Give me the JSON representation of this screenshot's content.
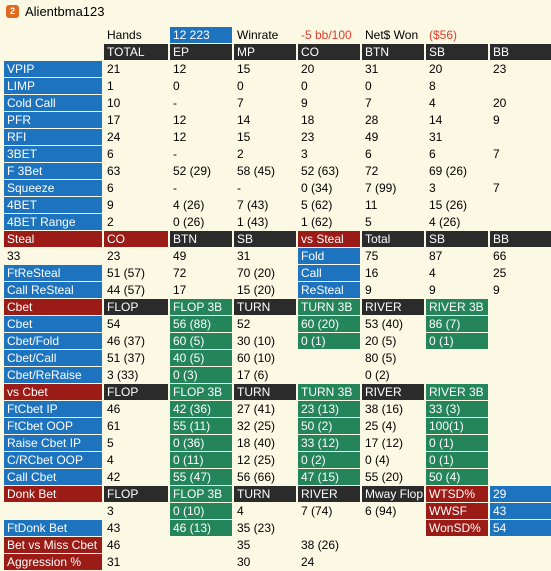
{
  "window": {
    "title": "Alientbma123",
    "icon": "player-badge-icon"
  },
  "summary": {
    "hands_label": "Hands",
    "hands_value": "12 223",
    "winrate_label": "Winrate",
    "winrate_value": "-5 bb/100",
    "net_label": "Net$ Won",
    "net_value": "($56)"
  },
  "rows": [
    [
      {
        "t": "TOTAL",
        "s": "hdr"
      },
      {
        "t": "EP",
        "s": "hdr"
      },
      {
        "t": "MP",
        "s": "hdr"
      },
      {
        "t": "CO",
        "s": "hdr"
      },
      {
        "t": "BTN",
        "s": "hdr"
      },
      {
        "t": "SB",
        "s": "hdr"
      },
      {
        "t": "BB",
        "s": "hdr"
      }
    ],
    [
      {
        "t": "VPIP",
        "s": "lbl"
      },
      {
        "t": "21"
      },
      {
        "t": "12"
      },
      {
        "t": "15"
      },
      {
        "t": "20"
      },
      {
        "t": "31"
      },
      {
        "t": "20"
      },
      {
        "t": "23"
      }
    ],
    [
      {
        "t": "LIMP",
        "s": "lbl"
      },
      {
        "t": "1"
      },
      {
        "t": "0"
      },
      {
        "t": "0"
      },
      {
        "t": "0"
      },
      {
        "t": "0"
      },
      {
        "t": "8"
      },
      {
        "t": ""
      }
    ],
    [
      {
        "t": "Cold Call",
        "s": "lbl"
      },
      {
        "t": "10"
      },
      {
        "t": "-"
      },
      {
        "t": "7"
      },
      {
        "t": "9"
      },
      {
        "t": "7"
      },
      {
        "t": "4"
      },
      {
        "t": "20"
      }
    ],
    [
      {
        "t": "PFR",
        "s": "lbl"
      },
      {
        "t": "17"
      },
      {
        "t": "12"
      },
      {
        "t": "14"
      },
      {
        "t": "18"
      },
      {
        "t": "28"
      },
      {
        "t": "14"
      },
      {
        "t": "9"
      }
    ],
    [
      {
        "t": "RFI",
        "s": "lbl"
      },
      {
        "t": "24"
      },
      {
        "t": "12"
      },
      {
        "t": "15"
      },
      {
        "t": "23"
      },
      {
        "t": "49"
      },
      {
        "t": "31"
      },
      {
        "t": ""
      }
    ],
    [
      {
        "t": "3BET",
        "s": "lbl"
      },
      {
        "t": "6"
      },
      {
        "t": "-"
      },
      {
        "t": "2"
      },
      {
        "t": "3"
      },
      {
        "t": "6"
      },
      {
        "t": "6"
      },
      {
        "t": "7"
      }
    ],
    [
      {
        "t": "F 3Bet",
        "s": "lbl"
      },
      {
        "t": "63"
      },
      {
        "t": "52 (29)"
      },
      {
        "t": "58 (45)"
      },
      {
        "t": "52 (63)"
      },
      {
        "t": "72"
      },
      {
        "t": "69 (26)"
      },
      {
        "t": ""
      }
    ],
    [
      {
        "t": "Squeeze",
        "s": "lbl"
      },
      {
        "t": "6"
      },
      {
        "t": "-"
      },
      {
        "t": "-"
      },
      {
        "t": "0 (34)"
      },
      {
        "t": "7 (99)"
      },
      {
        "t": "3"
      },
      {
        "t": "7"
      }
    ],
    [
      {
        "t": "4BET",
        "s": "lbl"
      },
      {
        "t": "9"
      },
      {
        "t": "4 (26)"
      },
      {
        "t": "7 (43)"
      },
      {
        "t": "5 (62)"
      },
      {
        "t": "11"
      },
      {
        "t": "15 (26)"
      },
      {
        "t": ""
      }
    ],
    [
      {
        "t": "4BET Range",
        "s": "lbl"
      },
      {
        "t": "2"
      },
      {
        "t": "0 (26)"
      },
      {
        "t": "1 (43)"
      },
      {
        "t": "1 (62)"
      },
      {
        "t": "5"
      },
      {
        "t": "4 (26)"
      },
      {
        "t": ""
      }
    ],
    [
      {
        "t": "Steal",
        "s": "sec"
      },
      {
        "t": "CO",
        "s": "sec"
      },
      {
        "t": "BTN",
        "s": "hdr"
      },
      {
        "t": "SB",
        "s": "hdr"
      },
      {
        "t": "vs Steal",
        "s": "sec"
      },
      {
        "t": "Total",
        "s": "hdr"
      },
      {
        "t": "SB",
        "s": "hdr"
      },
      {
        "t": "BB",
        "s": "hdr"
      }
    ],
    [
      {
        "t": "33"
      },
      {
        "t": "23"
      },
      {
        "t": "49"
      },
      {
        "t": "31"
      },
      {
        "t": "Fold",
        "s": "cyn"
      },
      {
        "t": "75"
      },
      {
        "t": "87"
      },
      {
        "t": "66"
      }
    ],
    [
      {
        "t": "FtReSteal",
        "s": "lbl"
      },
      {
        "t": "51 (57)"
      },
      {
        "t": "72"
      },
      {
        "t": "70 (20)"
      },
      {
        "t": "Call",
        "s": "cyn"
      },
      {
        "t": "16"
      },
      {
        "t": "4"
      },
      {
        "t": "25"
      }
    ],
    [
      {
        "t": "Call ReSteal",
        "s": "lbl"
      },
      {
        "t": "44 (57)"
      },
      {
        "t": "17"
      },
      {
        "t": "15 (20)"
      },
      {
        "t": "ReSteal",
        "s": "cyn"
      },
      {
        "t": "9"
      },
      {
        "t": "9"
      },
      {
        "t": "9"
      }
    ],
    [
      {
        "t": "Cbet",
        "s": "sec"
      },
      {
        "t": "FLOP",
        "s": "hdr"
      },
      {
        "t": "FLOP 3B",
        "s": "grn"
      },
      {
        "t": "TURN",
        "s": "hdr"
      },
      {
        "t": "TURN 3B",
        "s": "grn"
      },
      {
        "t": "RIVER",
        "s": "hdr"
      },
      {
        "t": "RIVER 3B",
        "s": "grn"
      },
      {
        "t": ""
      }
    ],
    [
      {
        "t": "Cbet",
        "s": "lbl"
      },
      {
        "t": "54"
      },
      {
        "t": "56 (88)",
        "s": "grn"
      },
      {
        "t": "52"
      },
      {
        "t": "60 (20)",
        "s": "grn"
      },
      {
        "t": "53 (40)"
      },
      {
        "t": "86 (7)",
        "s": "grn"
      },
      {
        "t": ""
      }
    ],
    [
      {
        "t": "Cbet/Fold",
        "s": "lbl"
      },
      {
        "t": "46 (37)"
      },
      {
        "t": "60 (5)",
        "s": "grn"
      },
      {
        "t": "30 (10)"
      },
      {
        "t": "0 (1)",
        "s": "grn"
      },
      {
        "t": "20 (5)"
      },
      {
        "t": "0 (1)",
        "s": "grn"
      },
      {
        "t": ""
      }
    ],
    [
      {
        "t": "Cbet/Call",
        "s": "lbl"
      },
      {
        "t": "51 (37)"
      },
      {
        "t": "40 (5)",
        "s": "grn"
      },
      {
        "t": "60 (10)"
      },
      {
        "t": ""
      },
      {
        "t": "80 (5)"
      },
      {
        "t": ""
      },
      {
        "t": ""
      }
    ],
    [
      {
        "t": "Cbet/ReRaise",
        "s": "lbl"
      },
      {
        "t": "3 (33)"
      },
      {
        "t": "0 (3)",
        "s": "grn"
      },
      {
        "t": "17 (6)"
      },
      {
        "t": ""
      },
      {
        "t": "0 (2)"
      },
      {
        "t": ""
      },
      {
        "t": ""
      }
    ],
    [
      {
        "t": "vs Cbet",
        "s": "sec"
      },
      {
        "t": "FLOP",
        "s": "hdr"
      },
      {
        "t": "FLOP 3B",
        "s": "grn"
      },
      {
        "t": "TURN",
        "s": "hdr"
      },
      {
        "t": "TURN 3B",
        "s": "grn"
      },
      {
        "t": "RIVER",
        "s": "hdr"
      },
      {
        "t": "RIVER 3B",
        "s": "grn"
      },
      {
        "t": ""
      }
    ],
    [
      {
        "t": "FtCbet IP",
        "s": "lbl"
      },
      {
        "t": "46"
      },
      {
        "t": "42 (36)",
        "s": "grn"
      },
      {
        "t": "27 (41)"
      },
      {
        "t": "23 (13)",
        "s": "grn"
      },
      {
        "t": "38 (16)"
      },
      {
        "t": "33 (3)",
        "s": "grn"
      },
      {
        "t": ""
      }
    ],
    [
      {
        "t": "FtCbet OOP",
        "s": "lbl"
      },
      {
        "t": "61"
      },
      {
        "t": "55 (11)",
        "s": "grn"
      },
      {
        "t": "32 (25)"
      },
      {
        "t": "50 (2)",
        "s": "grn"
      },
      {
        "t": "25 (4)"
      },
      {
        "t": "100(1)",
        "s": "grn"
      },
      {
        "t": ""
      }
    ],
    [
      {
        "t": "Raise Cbet IP",
        "s": "lbl"
      },
      {
        "t": "5"
      },
      {
        "t": "0 (36)",
        "s": "grn"
      },
      {
        "t": "18 (40)"
      },
      {
        "t": "33 (12)",
        "s": "grn"
      },
      {
        "t": "17 (12)"
      },
      {
        "t": "0 (1)",
        "s": "grn"
      },
      {
        "t": ""
      }
    ],
    [
      {
        "t": "C/RCbet OOP",
        "s": "lbl"
      },
      {
        "t": "4"
      },
      {
        "t": "0 (11)",
        "s": "grn"
      },
      {
        "t": "12 (25)"
      },
      {
        "t": "0 (2)",
        "s": "grn"
      },
      {
        "t": "0 (4)"
      },
      {
        "t": "0 (1)",
        "s": "grn"
      },
      {
        "t": ""
      }
    ],
    [
      {
        "t": "Call Cbet",
        "s": "lbl"
      },
      {
        "t": "42"
      },
      {
        "t": "55 (47)",
        "s": "grn"
      },
      {
        "t": "56 (66)"
      },
      {
        "t": "47 (15)",
        "s": "grn"
      },
      {
        "t": "55 (20)"
      },
      {
        "t": "50 (4)",
        "s": "grn"
      },
      {
        "t": ""
      }
    ],
    [
      {
        "t": "Donk Bet",
        "s": "sec"
      },
      {
        "t": "FLOP",
        "s": "hdr"
      },
      {
        "t": "FLOP 3B",
        "s": "grn"
      },
      {
        "t": "TURN",
        "s": "hdr"
      },
      {
        "t": "RIVER",
        "s": "hdr"
      },
      {
        "t": "Mway Flop",
        "s": "hdr"
      },
      {
        "t": "WTSD%",
        "s": "sec"
      },
      {
        "t": "29",
        "s": "cyn"
      }
    ],
    [
      {
        "t": ""
      },
      {
        "t": "3"
      },
      {
        "t": "0 (10)",
        "s": "grn"
      },
      {
        "t": "4"
      },
      {
        "t": "7 (74)"
      },
      {
        "t": "6 (94)"
      },
      {
        "t": "WWSF",
        "s": "sec"
      },
      {
        "t": "43",
        "s": "cyn"
      }
    ],
    [
      {
        "t": "FtDonk Bet",
        "s": "lbl"
      },
      {
        "t": "43"
      },
      {
        "t": "46 (13)",
        "s": "grn"
      },
      {
        "t": "35 (23)"
      },
      {
        "t": ""
      },
      {
        "t": ""
      },
      {
        "t": "WonSD%",
        "s": "sec"
      },
      {
        "t": "54",
        "s": "cyn"
      }
    ],
    [
      {
        "t": "Bet vs Miss Cbet",
        "s": "sec"
      },
      {
        "t": "46"
      },
      {
        "t": ""
      },
      {
        "t": "35"
      },
      {
        "t": "38 (26)"
      },
      {
        "t": ""
      },
      {
        "t": ""
      },
      {
        "t": ""
      }
    ],
    [
      {
        "t": "Aggression %",
        "s": "sec"
      },
      {
        "t": "31"
      },
      {
        "t": ""
      },
      {
        "t": "30"
      },
      {
        "t": "24"
      },
      {
        "t": ""
      },
      {
        "t": ""
      },
      {
        "t": ""
      }
    ]
  ]
}
